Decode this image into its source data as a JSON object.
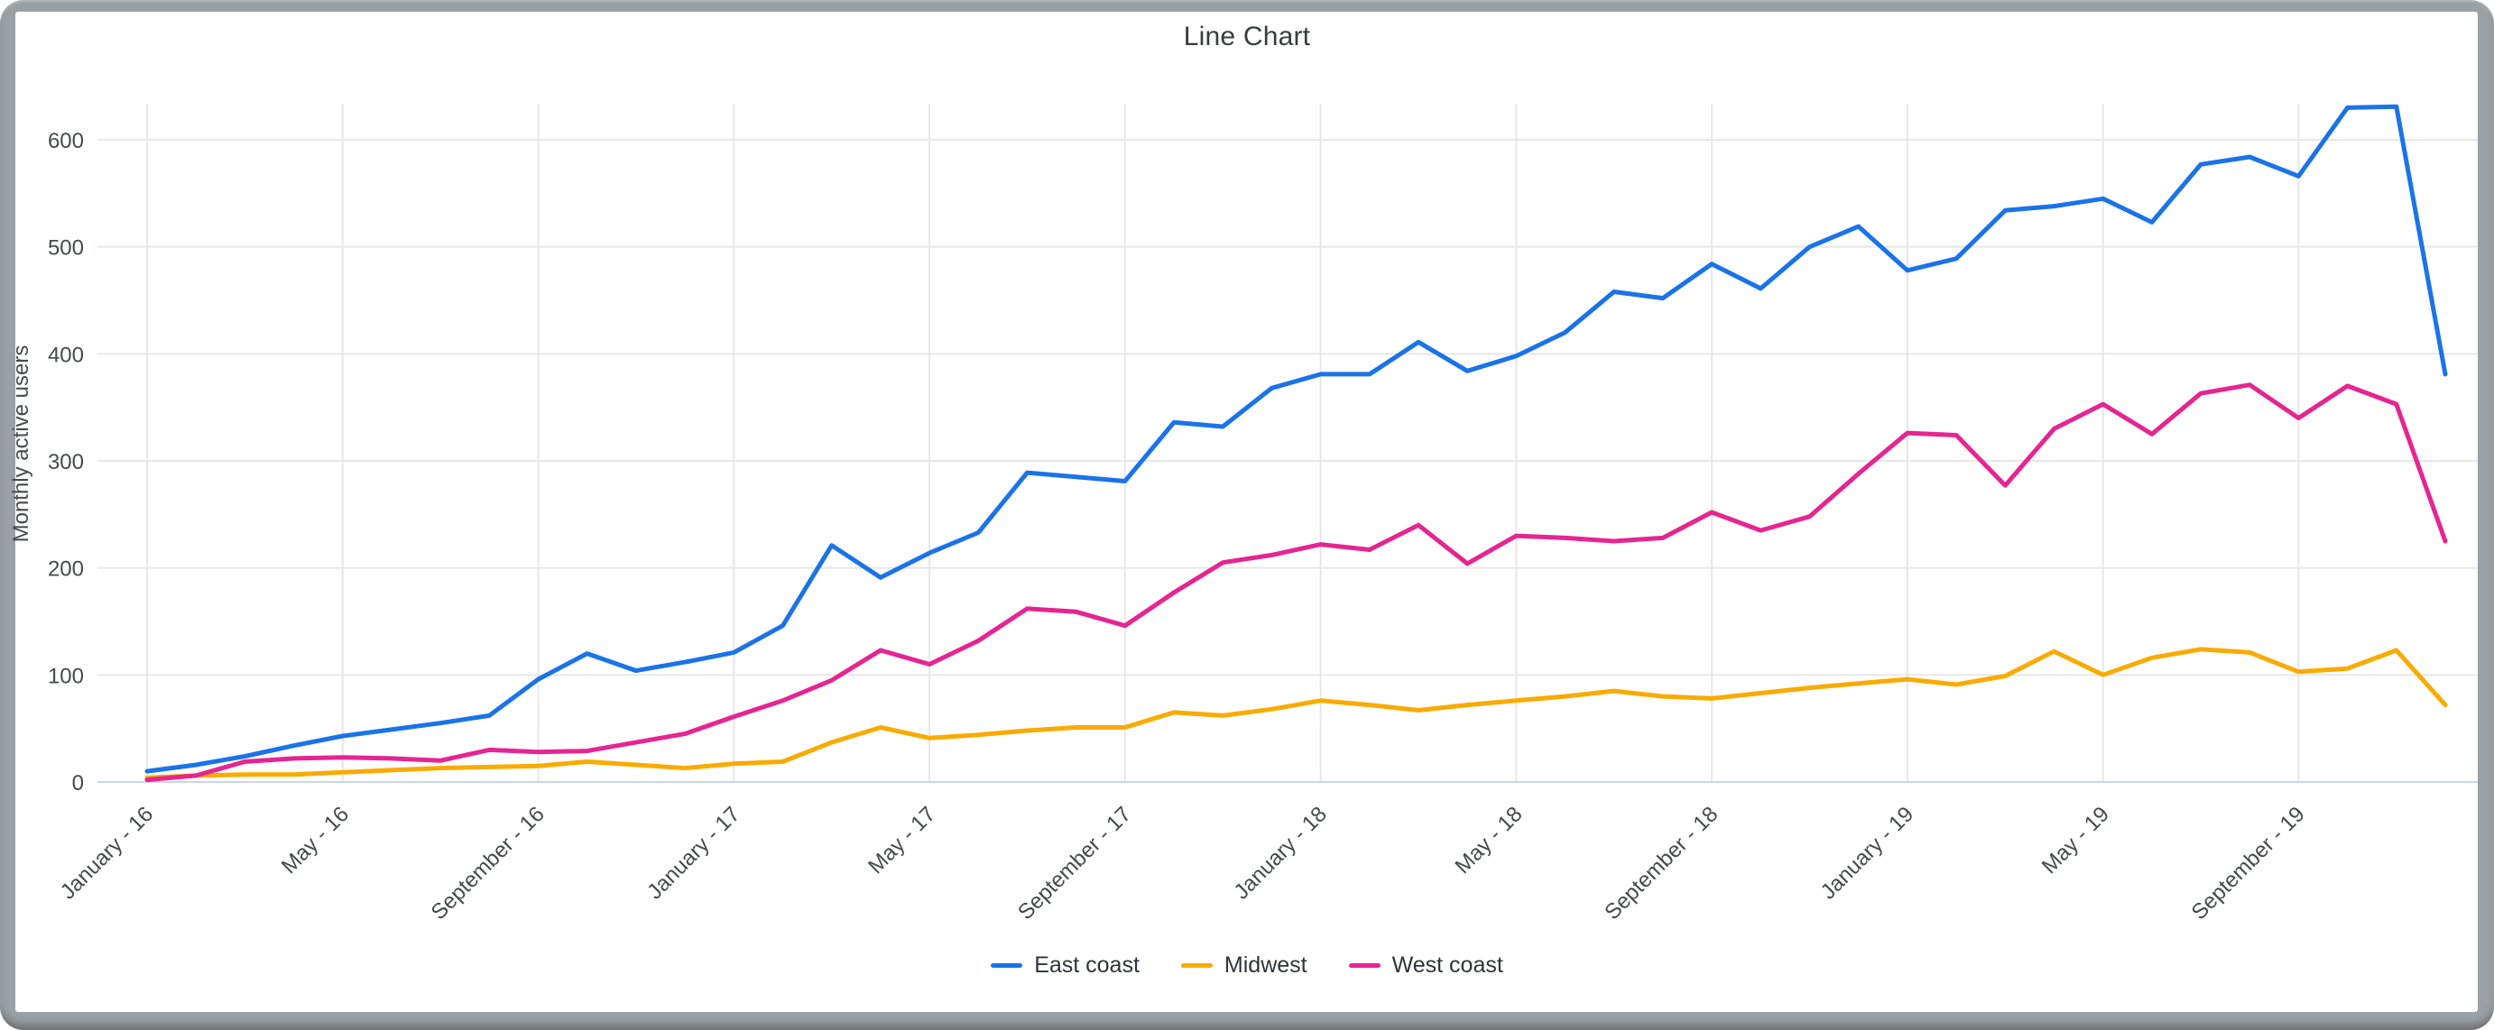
{
  "window": {
    "frame_color": "#9ba0a5",
    "card_background": "#ffffff"
  },
  "chart_data": {
    "type": "line",
    "title": "Line Chart",
    "xlabel": "",
    "ylabel": "Monthly active users",
    "ylim": [
      0,
      650
    ],
    "y_ticks": [
      0,
      100,
      200,
      300,
      400,
      500,
      600
    ],
    "grid": true,
    "legend_position": "bottom",
    "n_points": 48,
    "points_per_tick": 4,
    "x_tick_labels": [
      "January - 16",
      "May - 16",
      "September - 16",
      "January - 17",
      "May - 17",
      "September - 17",
      "January - 18",
      "May - 18",
      "September - 18",
      "January - 19",
      "May - 19",
      "September - 19"
    ],
    "series": [
      {
        "name": "East coast",
        "color": "#1a73e8",
        "values": [
          10,
          16,
          24,
          34,
          43,
          49,
          55,
          62,
          96,
          120,
          104,
          112,
          121,
          146,
          221,
          191,
          214,
          233,
          289,
          285,
          281,
          336,
          332,
          368,
          381,
          381,
          411,
          384,
          398,
          420,
          458,
          452,
          484,
          461,
          500,
          519,
          478,
          489,
          534,
          538,
          545,
          523,
          577,
          584,
          566,
          630,
          631,
          381
        ]
      },
      {
        "name": "Midwest",
        "color": "#f9ab00",
        "values": [
          4,
          6,
          7,
          7,
          9,
          11,
          13,
          14,
          15,
          19,
          16,
          13,
          17,
          19,
          37,
          51,
          41,
          44,
          48,
          51,
          51,
          65,
          62,
          68,
          76,
          72,
          67,
          72,
          76,
          80,
          85,
          80,
          78,
          83,
          88,
          92,
          96,
          91,
          99,
          122,
          100,
          116,
          124,
          121,
          103,
          106,
          123,
          72
        ]
      },
      {
        "name": "West coast",
        "color": "#e52592",
        "values": [
          2,
          6,
          19,
          22,
          23,
          22,
          20,
          30,
          28,
          29,
          37,
          45,
          61,
          76,
          95,
          123,
          110,
          132,
          162,
          159,
          146,
          177,
          205,
          212,
          222,
          217,
          240,
          204,
          230,
          228,
          225,
          228,
          252,
          235,
          248,
          288,
          326,
          324,
          277,
          330,
          353,
          325,
          363,
          371,
          340,
          370,
          353,
          225
        ]
      }
    ],
    "style": {
      "gridline_color": "#e7e7e7",
      "baseline_color": "#c9d6ee",
      "tick_label_color": "#46494d",
      "title_color": "#373c42",
      "line_width": 5
    }
  }
}
